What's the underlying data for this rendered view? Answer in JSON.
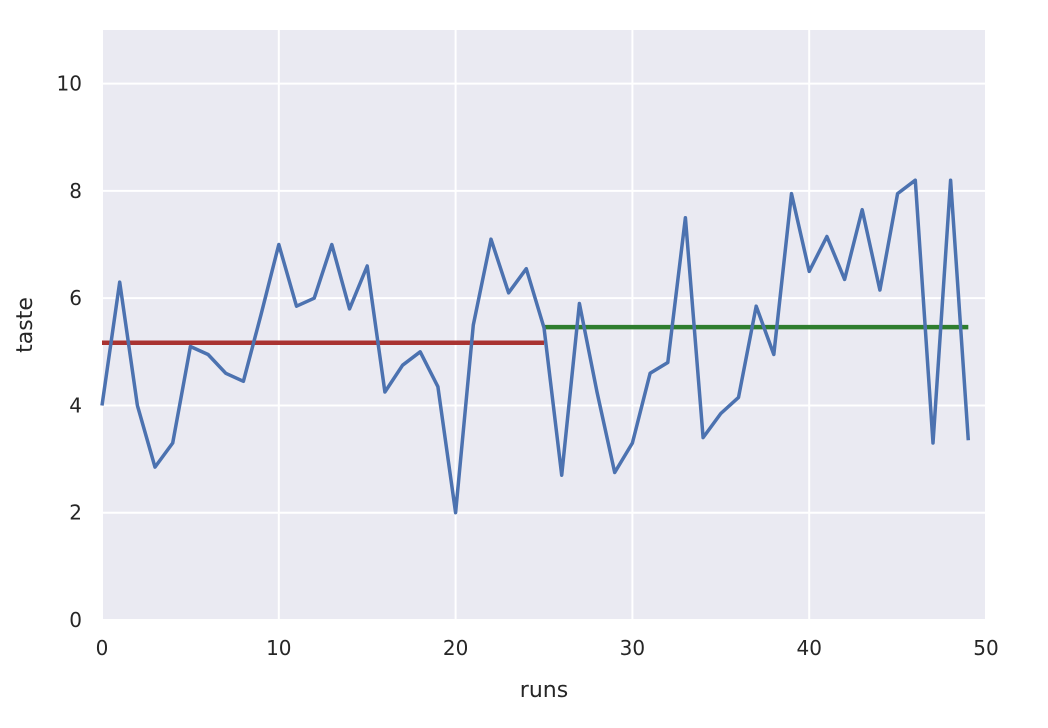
{
  "chart_data": {
    "type": "line",
    "xlabel": "runs",
    "ylabel": "taste",
    "xlim": [
      0,
      50
    ],
    "ylim": [
      0,
      11
    ],
    "xticks": [
      0,
      10,
      20,
      30,
      40,
      50
    ],
    "yticks": [
      0,
      2,
      4,
      6,
      8,
      10
    ],
    "grid": true,
    "background": "#eaeaf2",
    "series": [
      {
        "color": "#4c72b0",
        "x": [
          0,
          1,
          2,
          3,
          4,
          5,
          6,
          7,
          8,
          9,
          10,
          11,
          12,
          13,
          14,
          15,
          16,
          17,
          18,
          19,
          20,
          21,
          22,
          23,
          24,
          25,
          26,
          27,
          28,
          29,
          30,
          31,
          32,
          33,
          34,
          35,
          36,
          37,
          38,
          39,
          40,
          41,
          42,
          43,
          44,
          45,
          46,
          47,
          48,
          49
        ],
        "y": [
          4.0,
          6.3,
          4.0,
          2.85,
          3.3,
          5.1,
          4.95,
          4.6,
          4.45,
          5.7,
          7.0,
          5.85,
          6.0,
          7.0,
          5.8,
          6.6,
          4.25,
          4.75,
          5.0,
          4.35,
          2.0,
          5.5,
          7.1,
          6.1,
          6.55,
          5.45,
          2.7,
          5.9,
          4.25,
          2.75,
          3.3,
          4.6,
          4.8,
          7.5,
          3.4,
          3.85,
          4.15,
          5.85,
          4.95,
          7.95,
          6.5,
          7.15,
          6.35,
          7.65,
          6.15,
          7.95,
          8.2,
          3.3,
          8.2,
          3.35
        ]
      }
    ],
    "hlines": [
      {
        "y": 5.17,
        "xmin": 0,
        "xmax": 25,
        "color": "#a93331"
      },
      {
        "y": 5.46,
        "xmin": 25,
        "xmax": 49,
        "color": "#2e7d2e"
      }
    ]
  }
}
